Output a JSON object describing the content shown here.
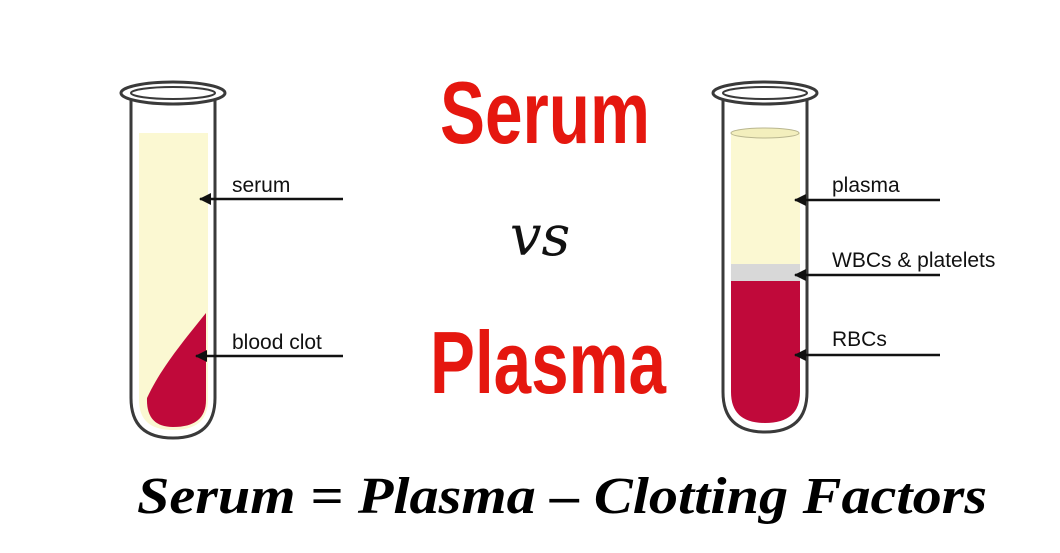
{
  "title": {
    "word1": "Serum",
    "vs": "vs",
    "word2": "Plasma"
  },
  "formula": "Serum = Plasma – Clotting Factors",
  "left_tube": {
    "labels": {
      "serum": "serum",
      "blood_clot": "blood clot"
    }
  },
  "right_tube": {
    "labels": {
      "plasma": "plasma",
      "wbcs_platelets": "WBCs & platelets",
      "rbcs": "RBCs"
    }
  },
  "colors": {
    "title_red": "#e5170f",
    "serum_fill": "#fbf8d2",
    "blood_red": "#c0093a",
    "buffy_coat": "#d8d8d8",
    "glass_outline": "#3a3a3a"
  }
}
